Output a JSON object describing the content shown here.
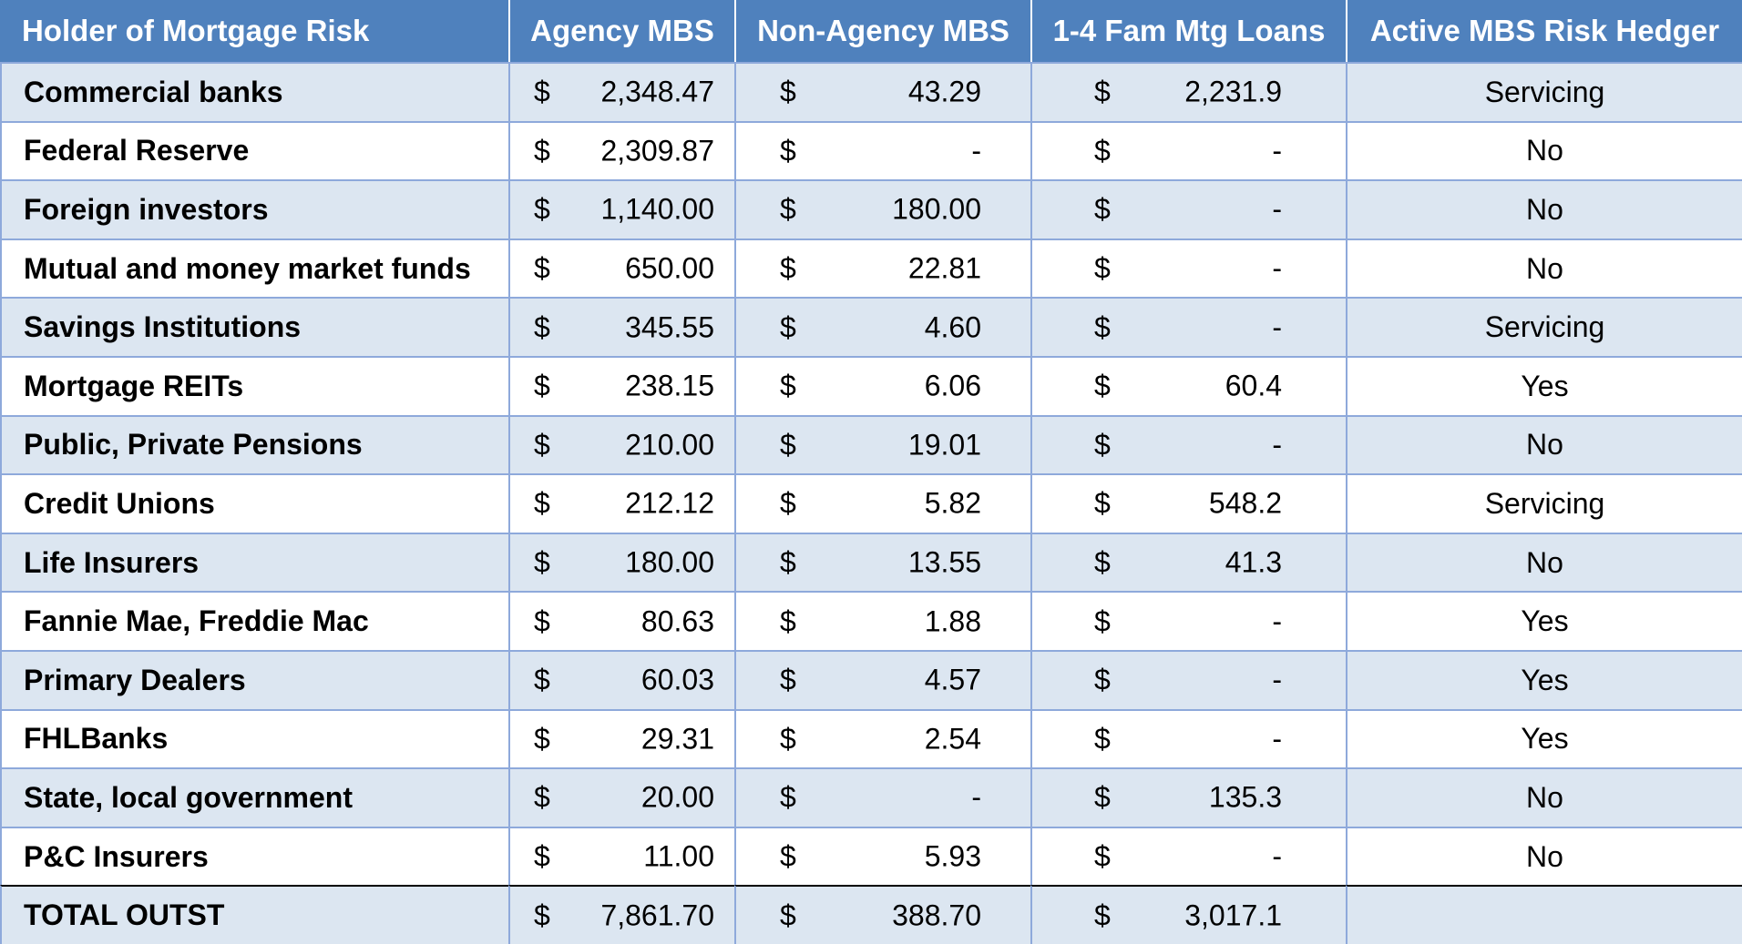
{
  "table": {
    "headers": [
      "Holder of Mortgage Risk",
      "Agency MBS",
      "Non-Agency MBS",
      "1-4 Fam Mtg Loans",
      "Active MBS Risk Hedger"
    ],
    "currency_symbol": "$",
    "rows": [
      {
        "holder": "Commercial banks",
        "agency_mbs": "2,348.47",
        "non_agency_mbs": "43.29",
        "fam_mtg_loans": "2,231.9",
        "hedger": "Servicing"
      },
      {
        "holder": "Federal Reserve",
        "agency_mbs": "2,309.87",
        "non_agency_mbs": "-",
        "fam_mtg_loans": "-",
        "hedger": "No"
      },
      {
        "holder": "Foreign investors",
        "agency_mbs": "1,140.00",
        "non_agency_mbs": "180.00",
        "fam_mtg_loans": "-",
        "hedger": "No"
      },
      {
        "holder": "Mutual and money market funds",
        "agency_mbs": "650.00",
        "non_agency_mbs": "22.81",
        "fam_mtg_loans": "-",
        "hedger": "No"
      },
      {
        "holder": "Savings Institutions",
        "agency_mbs": "345.55",
        "non_agency_mbs": "4.60",
        "fam_mtg_loans": "-",
        "hedger": "Servicing"
      },
      {
        "holder": "Mortgage REITs",
        "agency_mbs": "238.15",
        "non_agency_mbs": "6.06",
        "fam_mtg_loans": "60.4",
        "hedger": "Yes"
      },
      {
        "holder": "Public, Private Pensions",
        "agency_mbs": "210.00",
        "non_agency_mbs": "19.01",
        "fam_mtg_loans": "-",
        "hedger": "No"
      },
      {
        "holder": "Credit Unions",
        "agency_mbs": "212.12",
        "non_agency_mbs": "5.82",
        "fam_mtg_loans": "548.2",
        "hedger": "Servicing"
      },
      {
        "holder": "Life Insurers",
        "agency_mbs": "180.00",
        "non_agency_mbs": "13.55",
        "fam_mtg_loans": "41.3",
        "hedger": "No"
      },
      {
        "holder": "Fannie Mae, Freddie Mac",
        "agency_mbs": "80.63",
        "non_agency_mbs": "1.88",
        "fam_mtg_loans": "-",
        "hedger": "Yes"
      },
      {
        "holder": "Primary Dealers",
        "agency_mbs": "60.03",
        "non_agency_mbs": "4.57",
        "fam_mtg_loans": "-",
        "hedger": "Yes"
      },
      {
        "holder": "FHLBanks",
        "agency_mbs": "29.31",
        "non_agency_mbs": "2.54",
        "fam_mtg_loans": "-",
        "hedger": "Yes"
      },
      {
        "holder": "State, local government",
        "agency_mbs": "20.00",
        "non_agency_mbs": "-",
        "fam_mtg_loans": "135.3",
        "hedger": "No"
      },
      {
        "holder": "P&C Insurers",
        "agency_mbs": "11.00",
        "non_agency_mbs": "5.93",
        "fam_mtg_loans": "-",
        "hedger": "No"
      }
    ],
    "total": {
      "holder": "TOTAL OUTST",
      "agency_mbs": "7,861.70",
      "non_agency_mbs": "388.70",
      "fam_mtg_loans": "3,017.1",
      "hedger": ""
    }
  },
  "colors": {
    "header_bg": "#4F81BD",
    "band_bg": "#DCE6F1",
    "border": "#8EA9DB"
  }
}
